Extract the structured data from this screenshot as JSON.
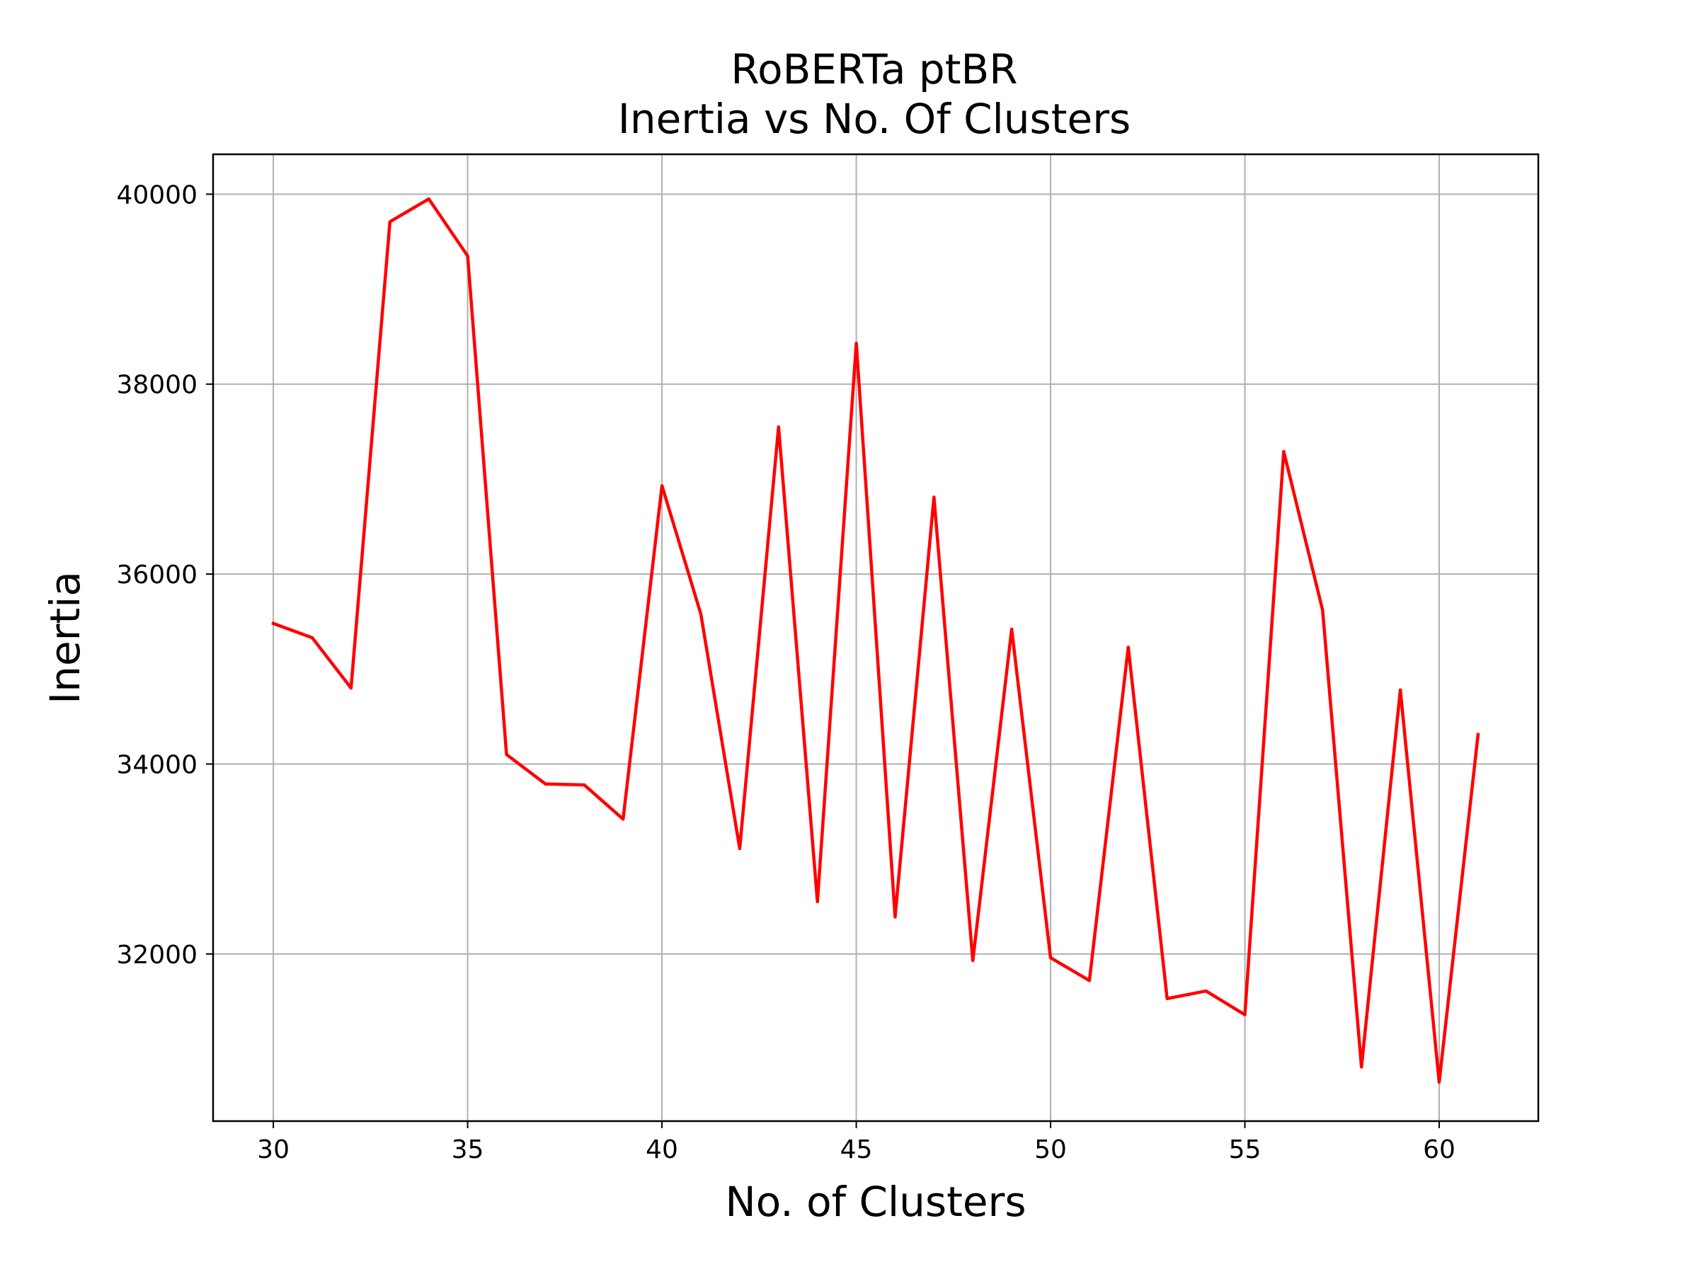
{
  "chart_data": {
    "type": "line",
    "title_line1": "RoBERTa ptBR",
    "title_line2": "Inertia vs No. Of Clusters",
    "xlabel": "No. of Clusters",
    "ylabel": "Inertia",
    "xlim": [
      28.45,
      62.55
    ],
    "ylim": [
      30240,
      40420
    ],
    "xticks": [
      30,
      35,
      40,
      45,
      50,
      55,
      60
    ],
    "yticks": [
      32000,
      34000,
      36000,
      38000,
      40000
    ],
    "grid": true,
    "series": [
      {
        "color": "#ff0000",
        "x": [
          30,
          31,
          32,
          33,
          34,
          35,
          36,
          37,
          38,
          39,
          40,
          41,
          42,
          43,
          44,
          45,
          46,
          47,
          48,
          49,
          50,
          51,
          52,
          53,
          54,
          55,
          56,
          57,
          58,
          59,
          60,
          61
        ],
        "y": [
          35480,
          35330,
          34800,
          39710,
          39950,
          39350,
          34100,
          33790,
          33780,
          33420,
          36930,
          35580,
          33110,
          37550,
          32550,
          38430,
          32390,
          36810,
          31930,
          35420,
          31960,
          31720,
          35230,
          31530,
          31610,
          31360,
          37290,
          35620,
          30810,
          34780,
          30650,
          34310
        ]
      }
    ]
  }
}
